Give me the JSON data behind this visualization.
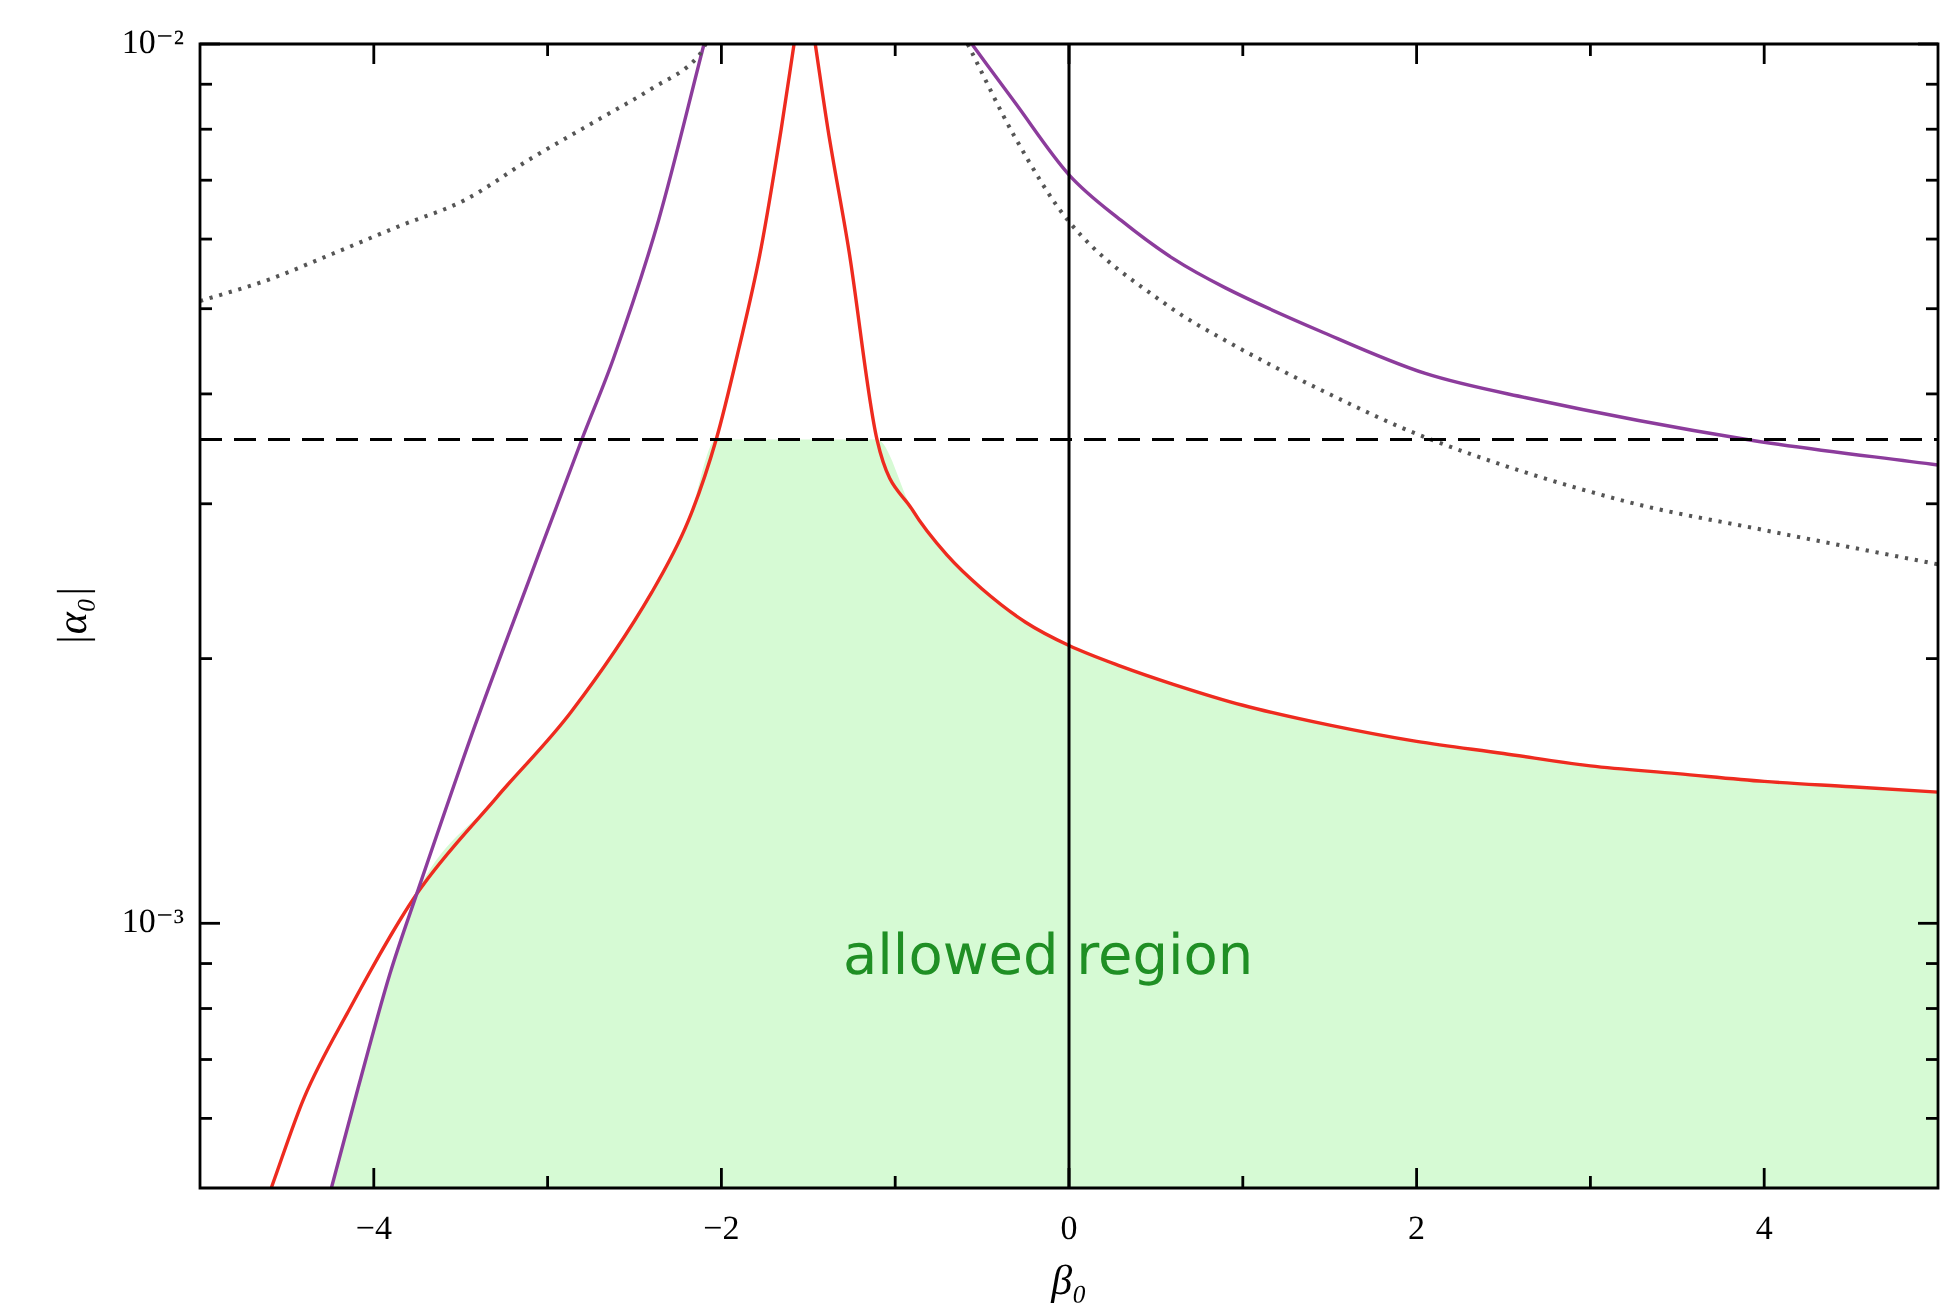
{
  "chart_data": {
    "type": "line",
    "xlabel": "β₀",
    "ylabel": "|α₀|",
    "xlim": [
      -5,
      5
    ],
    "ylim": [
      0.0005,
      0.01
    ],
    "log": "y",
    "xticks": [
      {
        "value": -4,
        "label": "−4"
      },
      {
        "value": -3,
        "label": null
      },
      {
        "value": -2,
        "label": "−2"
      },
      {
        "value": -1,
        "label": null
      },
      0,
      {
        "value": 1,
        "label": null
      },
      2,
      {
        "value": 3,
        "label": null
      },
      4
    ],
    "yticks": [
      {
        "value": 0.0006,
        "label": null
      },
      {
        "value": 0.0007,
        "label": null
      },
      {
        "value": 0.0008,
        "label": null
      },
      {
        "value": 0.0009,
        "label": null
      },
      {
        "value": 0.001,
        "label": "10⁻³"
      },
      {
        "value": 0.002,
        "label": null
      },
      {
        "value": 0.003,
        "label": null
      },
      {
        "value": 0.004,
        "label": null
      },
      {
        "value": 0.005,
        "label": null
      },
      {
        "value": 0.006,
        "label": null
      },
      {
        "value": 0.007,
        "label": null
      },
      {
        "value": 0.008,
        "label": null
      },
      {
        "value": 0.009,
        "label": null
      },
      {
        "value": 0.01,
        "label": "10⁻²"
      }
    ],
    "series": [
      {
        "type": "area",
        "color": "#d6fad4",
        "x": [
          -4.244,
          -4.09,
          -3.908,
          -3.753,
          -3.294,
          -2.864,
          -2.4,
          -2.19,
          -2.03,
          -1.105,
          -0.9,
          -0.7,
          -0.5,
          -0.25,
          0,
          0.3,
          0.6,
          1,
          1.5,
          2,
          2.5,
          3,
          3.5,
          4,
          4.5,
          5
        ],
        "values": [
          0.0005,
          0.00065,
          0.000875,
          0.00108,
          0.00139,
          0.00174,
          0.00238,
          0.00287,
          0.00355,
          0.00355,
          0.00295,
          0.00262,
          0.0024,
          0.0022,
          0.00207,
          0.00196,
          0.00187,
          0.00177,
          0.00168,
          0.00161,
          0.00156,
          0.00151,
          0.00148,
          0.00145,
          0.00143,
          0.00141
        ]
      },
      {
        "color": "#ee2b1f",
        "x": [
          -4.59,
          -4.4,
          -4.153,
          -3.753,
          -3.294,
          -2.864,
          -2.4,
          -2.19,
          -2.03,
          -1.9,
          -1.776,
          -1.656,
          -1.582,
          -1.52,
          -1.46,
          -1.387,
          -1.265,
          -1.105,
          -0.9,
          -0.7,
          -0.5,
          -0.25,
          0,
          0.3,
          0.6,
          1,
          1.5,
          2,
          2.5,
          3,
          3.5,
          4,
          4.5,
          5
        ],
        "values": [
          0.0005,
          0.000634,
          0.00079,
          0.00108,
          0.00139,
          0.00174,
          0.00238,
          0.00287,
          0.00355,
          0.0045,
          0.0058,
          0.008,
          0.01,
          null,
          0.01,
          0.008,
          0.0058,
          0.00355,
          0.00295,
          0.00262,
          0.0024,
          0.0022,
          0.00207,
          0.00196,
          0.00187,
          0.00177,
          0.00168,
          0.00161,
          0.00156,
          0.00151,
          0.00148,
          0.00145,
          0.00143,
          0.00141
        ]
      },
      {
        "color": "#8c3c9c",
        "x": [
          -4.244,
          -4.09,
          -3.908,
          -3.753,
          -3.417,
          -3.109,
          -2.803,
          -2.619,
          -2.362,
          -2.1,
          -1.3,
          -0.559,
          -0.315,
          0,
          0.3,
          0.6,
          0.9,
          1.44,
          2.05,
          2.63,
          3.9,
          5
        ],
        "values": [
          0.0005,
          0.00065,
          0.000875,
          0.00108,
          0.00168,
          0.00245,
          0.00355,
          0.0044,
          0.0063,
          0.01,
          null,
          0.01,
          0.0086,
          0.0071,
          0.0063,
          0.0057,
          0.00528,
          0.00472,
          0.00422,
          0.00396,
          0.00355,
          0.00332
        ]
      },
      {
        "color": "#555555",
        "line_style": "dotted",
        "x": [
          -5,
          -4.6,
          -4.24,
          -3.86,
          -3.48,
          -3.1,
          -2.71,
          -2.4,
          -2.13,
          -2.09,
          -1.3,
          -0.583,
          -0.315,
          0,
          0.562,
          0.9,
          1.44,
          2.05,
          3.2,
          4,
          5
        ],
        "values": [
          0.0051,
          0.0054,
          0.00577,
          0.0062,
          0.00664,
          0.0074,
          0.0082,
          0.0089,
          0.0097,
          0.01,
          null,
          0.01,
          0.00786,
          0.00628,
          0.00505,
          0.0046,
          0.00405,
          0.00357,
          0.00302,
          0.0028,
          0.00256
        ]
      }
    ],
    "ref_lines": [
      {
        "axis": "x",
        "value": 0,
        "color": "#000000",
        "line_style": "solid"
      },
      {
        "axis": "y",
        "value": 0.00355,
        "color": "#000000",
        "line_style": "dashed"
      }
    ],
    "annotations": [
      "allowed region"
    ]
  }
}
